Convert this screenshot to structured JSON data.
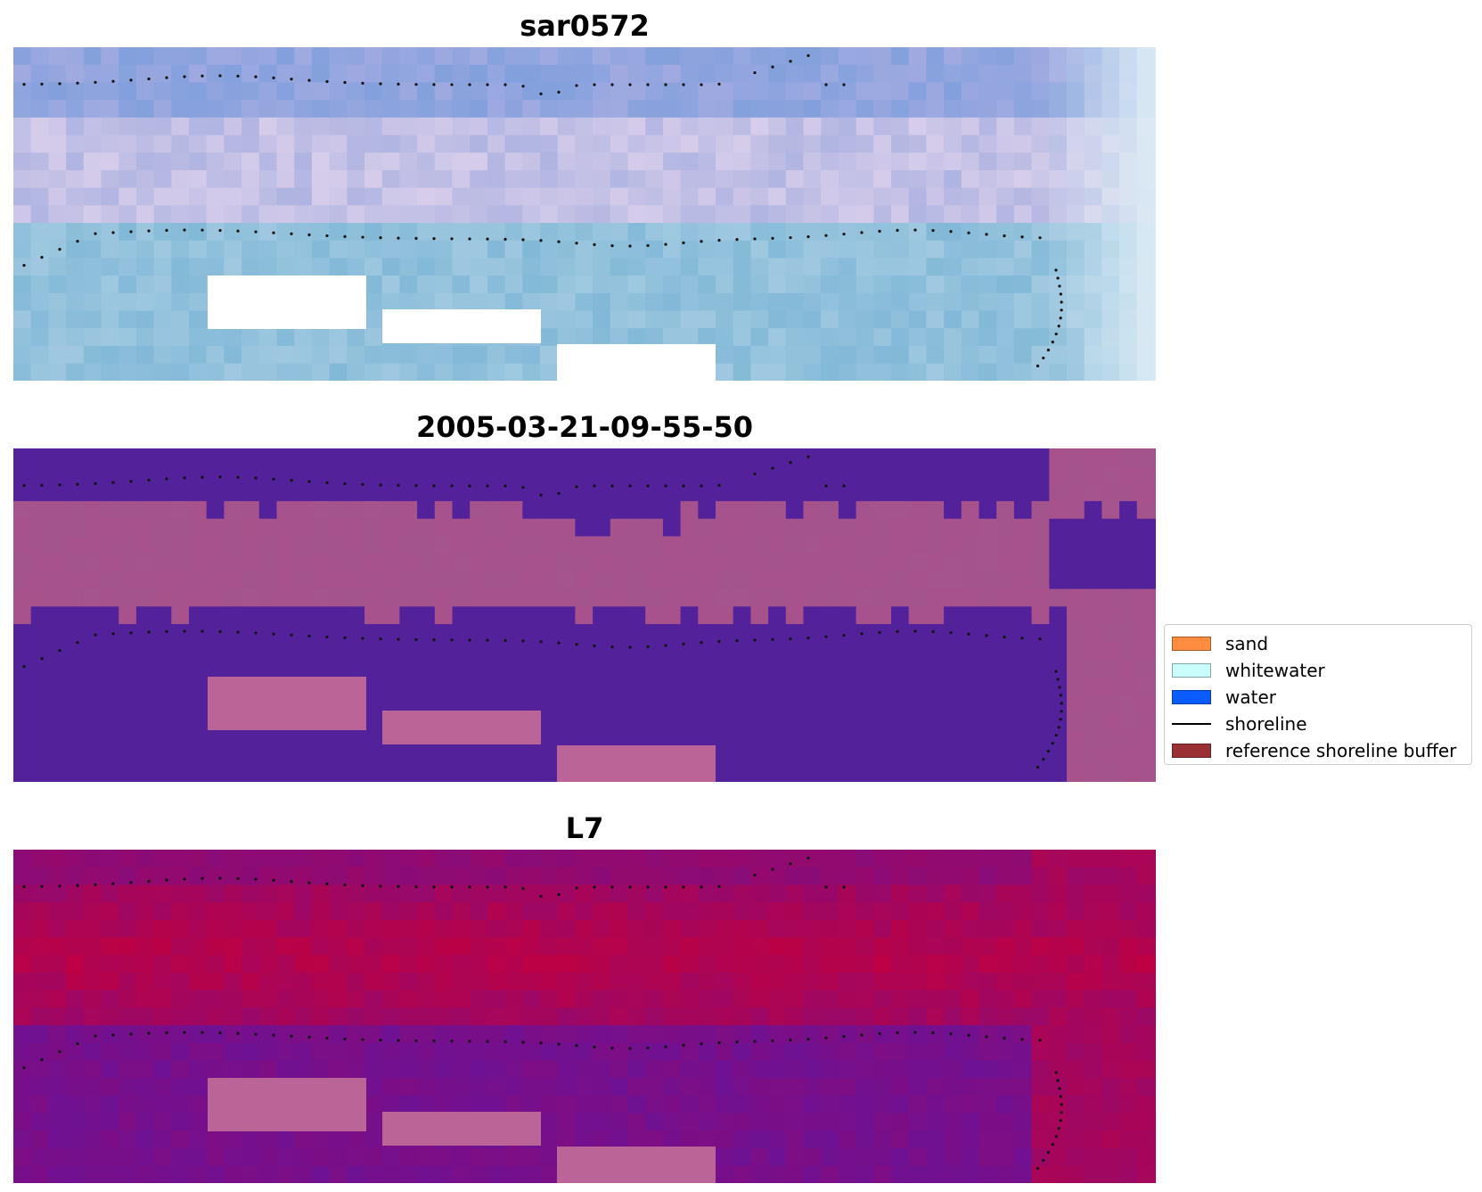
{
  "panels": [
    {
      "title": "sar0572",
      "style": "rgb"
    },
    {
      "title": "2005-03-21-09-55-50",
      "style": "classified"
    },
    {
      "title": "L7",
      "style": "index"
    }
  ],
  "legend": {
    "items": [
      {
        "label": "sand",
        "kind": "patch",
        "color": "#ff8c3f"
      },
      {
        "label": "whitewater",
        "kind": "patch",
        "color": "#c8fdfb"
      },
      {
        "label": "water",
        "kind": "patch",
        "color": "#0a5cff"
      },
      {
        "label": "shoreline",
        "kind": "line",
        "color": "#000000"
      },
      {
        "label": "reference shoreline buffer",
        "kind": "patch",
        "color": "#9a3033"
      }
    ]
  },
  "colors": {
    "masked": "#ffffff",
    "classified_water": "#53229b",
    "classified_sand": "#a4548d",
    "buffer_mask": "#bb6497",
    "index_low": "#6a1298",
    "index_high": "#c2003e"
  }
}
